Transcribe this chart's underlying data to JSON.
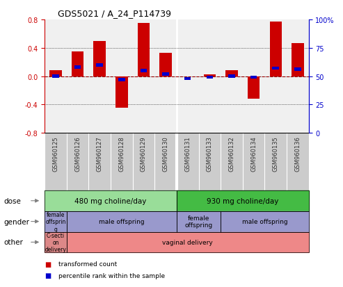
{
  "title": "GDS5021 / A_24_P114739",
  "samples": [
    "GSM960125",
    "GSM960126",
    "GSM960127",
    "GSM960128",
    "GSM960129",
    "GSM960130",
    "GSM960131",
    "GSM960133",
    "GSM960132",
    "GSM960134",
    "GSM960135",
    "GSM960136"
  ],
  "red_values": [
    0.08,
    0.35,
    0.5,
    -0.45,
    0.75,
    0.33,
    0.0,
    0.02,
    0.08,
    -0.32,
    0.77,
    0.47
  ],
  "blue_values": [
    50,
    58,
    60,
    47,
    55,
    52,
    48,
    49,
    50,
    49,
    57,
    56
  ],
  "ylim_left": [
    -0.8,
    0.8
  ],
  "ylim_right": [
    0,
    100
  ],
  "yticks_left": [
    -0.8,
    -0.4,
    0.0,
    0.4,
    0.8
  ],
  "yticks_right": [
    0,
    25,
    50,
    75,
    100
  ],
  "ytick_labels_right": [
    "0",
    "25",
    "50",
    "75",
    "100%"
  ],
  "bar_width": 0.55,
  "red_color": "#cc0000",
  "blue_color": "#0000cc",
  "dose_labels": [
    {
      "text": "480 mg choline/day",
      "start": 0,
      "end": 5,
      "color": "#99dd99"
    },
    {
      "text": "930 mg choline/day",
      "start": 6,
      "end": 11,
      "color": "#44bb44"
    }
  ],
  "gender_labels": [
    {
      "text": "female\noffsprin\ng",
      "start": 0,
      "end": 0,
      "color": "#9999cc"
    },
    {
      "text": "male offspring",
      "start": 1,
      "end": 5,
      "color": "#9999cc"
    },
    {
      "text": "female\noffspring",
      "start": 6,
      "end": 7,
      "color": "#9999cc"
    },
    {
      "text": "male offspring",
      "start": 8,
      "end": 11,
      "color": "#9999cc"
    }
  ],
  "other_labels": [
    {
      "text": "C-secti\non\ndelivery",
      "start": 0,
      "end": 0,
      "color": "#dd8888"
    },
    {
      "text": "vaginal delivery",
      "start": 1,
      "end": 11,
      "color": "#ee8888"
    }
  ],
  "row_labels": [
    "dose",
    "gender",
    "other"
  ],
  "legend_items": [
    {
      "color": "#cc0000",
      "label": "transformed count"
    },
    {
      "color": "#0000cc",
      "label": "percentile rank within the sample"
    }
  ],
  "xticklabel_color": "#333333",
  "left_axis_color": "#cc0000",
  "right_axis_color": "#0000cc",
  "background_color": "#ffffff",
  "plot_bg_color": "#f0f0f0",
  "xtick_bg_color": "#cccccc"
}
